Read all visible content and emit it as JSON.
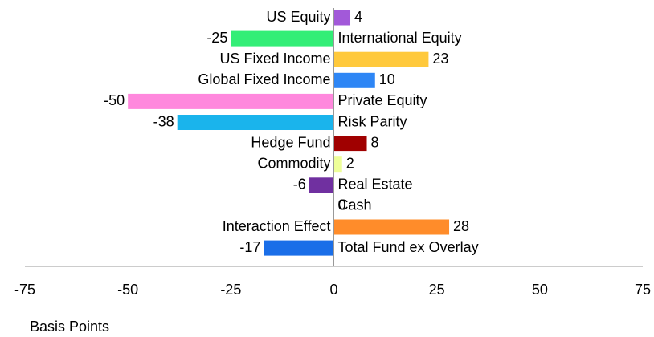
{
  "chart_data": {
    "type": "bar",
    "orientation": "horizontal",
    "categories": [
      "US Equity",
      "International Equity",
      "US Fixed Income",
      "Global Fixed Income",
      "Private Equity",
      "Risk Parity",
      "Hedge Fund",
      "Commodity",
      "Real Estate",
      "Cash",
      "Interaction Effect",
      "Total Fund ex Overlay"
    ],
    "values": [
      4,
      -25,
      23,
      10,
      -50,
      -38,
      8,
      2,
      -6,
      0,
      28,
      -17
    ],
    "colors": [
      "#a259d9",
      "#33ee77",
      "#ffc93c",
      "#2e86f5",
      "#ff88dd",
      "#1ab4ec",
      "#a00000",
      "#eeff99",
      "#7030a0",
      "#999999",
      "#ff8c2a",
      "#1a6ee8"
    ],
    "xlim": [
      -75,
      75
    ],
    "xticks": [
      -75,
      -50,
      -25,
      0,
      25,
      50,
      75
    ],
    "xlabel": "Basis Points",
    "grid": false
  }
}
